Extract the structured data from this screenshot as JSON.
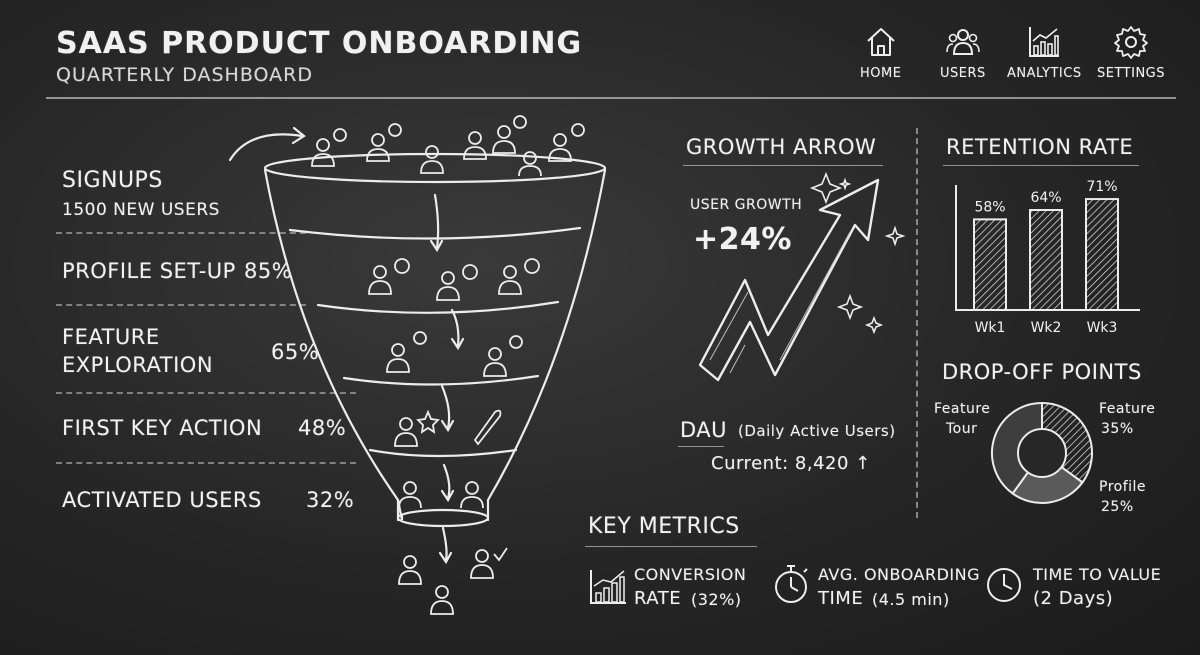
{
  "header": {
    "title": "SAAS PRODUCT ONBOARDING",
    "subtitle": "QUARTERLY DASHBOARD"
  },
  "nav": [
    {
      "label": "HOME",
      "icon": "home-icon"
    },
    {
      "label": "USERS",
      "icon": "users-icon"
    },
    {
      "label": "ANALYTICS",
      "icon": "analytics-icon"
    },
    {
      "label": "SETTINGS",
      "icon": "gear-icon"
    }
  ],
  "funnel": {
    "signups_label": "SIGNUPS",
    "signups_sub": "1500 NEW USERS",
    "stages": [
      {
        "label": "PROFILE SET-UP",
        "pct": "85%"
      },
      {
        "label_line1": "FEATURE",
        "label_line2": "EXPLORATION",
        "pct": "65%"
      },
      {
        "label": "FIRST KEY ACTION",
        "pct": "48%"
      },
      {
        "label": "ACTIVATED USERS",
        "pct": "32%"
      }
    ]
  },
  "growth": {
    "title": "GROWTH ARROW",
    "user_growth_label": "USER GROWTH",
    "user_growth_value": "+24%",
    "dau_label": "DAU",
    "dau_desc": "(Daily Active Users)",
    "dau_current": "Current: 8,420 ↑"
  },
  "retention": {
    "title": "RETENTION RATE"
  },
  "dropoff": {
    "title": "DROP-OFF POINTS",
    "labels": {
      "feature_tour_line1": "Feature",
      "feature_tour_line2": "Tour",
      "feature_line1": "Feature",
      "feature_line2": "35%",
      "profile_line1": "Profile",
      "profile_line2": "25%"
    }
  },
  "key_metrics": {
    "title": "KEY METRICS",
    "items": [
      {
        "line1": "CONVERSION",
        "line2": "RATE",
        "detail": "(32%)",
        "icon": "bar-chart-icon"
      },
      {
        "line1": "AVG. ONBOARDING",
        "line2": "TIME",
        "detail": "(4.5 min)",
        "icon": "stopwatch-icon"
      },
      {
        "line1": "TIME TO VALUE",
        "line2": "",
        "detail": "(2 Days)",
        "icon": "clock-icon"
      }
    ]
  },
  "chart_data": [
    {
      "type": "bar",
      "title": "RETENTION RATE",
      "categories": [
        "Wk1",
        "Wk2",
        "Wk3"
      ],
      "values": [
        58,
        64,
        71
      ],
      "data_labels": [
        "58%",
        "64%",
        "71%"
      ],
      "ylim": [
        0,
        80
      ],
      "grid": false
    },
    {
      "type": "pie",
      "title": "DROP-OFF POINTS",
      "categories": [
        "Feature",
        "Profile",
        "Feature Tour"
      ],
      "values": [
        35,
        25,
        40
      ],
      "donut": true
    }
  ],
  "colors": {
    "chalk": "#f1f1f1",
    "board": "#262626"
  }
}
